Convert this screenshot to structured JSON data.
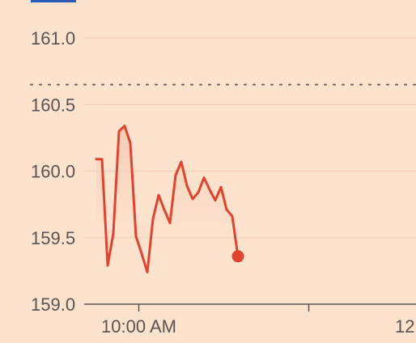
{
  "colors": {
    "background": "#FDE2CE",
    "line": "#E0442E",
    "area": "#F5C8B2",
    "grid": "#F5D2BD",
    "axis": "#5a5450",
    "tab": "#2B5AB8"
  },
  "chart_data": {
    "type": "line",
    "title": "",
    "xlabel": "",
    "ylabel": "",
    "ylim": [
      159.0,
      161.1
    ],
    "yticks": [
      {
        "value": 159.0,
        "label": "159.0"
      },
      {
        "value": 159.5,
        "label": "159.5"
      },
      {
        "value": 160.0,
        "label": "160.0"
      },
      {
        "value": 160.5,
        "label": "160.5"
      },
      {
        "value": 161.0,
        "label": "161.0"
      }
    ],
    "xticks": [
      {
        "time": "10:00",
        "label": "10:00 AM"
      },
      {
        "time": "12:00",
        "label": "12"
      }
    ],
    "reference_line": {
      "value": 160.65,
      "style": "dotted"
    },
    "grid": true,
    "series": [
      {
        "values": [
          {
            "time": "09:30",
            "value": 160.09
          },
          {
            "time": "09:34",
            "value": 160.09
          },
          {
            "time": "09:38",
            "value": 159.29
          },
          {
            "time": "09:42",
            "value": 159.53
          },
          {
            "time": "09:46",
            "value": 160.3
          },
          {
            "time": "09:50",
            "value": 160.34
          },
          {
            "time": "09:54",
            "value": 160.21
          },
          {
            "time": "09:58",
            "value": 159.51
          },
          {
            "time": "10:02",
            "value": 159.38
          },
          {
            "time": "10:06",
            "value": 159.24
          },
          {
            "time": "10:10",
            "value": 159.64
          },
          {
            "time": "10:14",
            "value": 159.82
          },
          {
            "time": "10:18",
            "value": 159.71
          },
          {
            "time": "10:22",
            "value": 159.61
          },
          {
            "time": "10:26",
            "value": 159.97
          },
          {
            "time": "10:30",
            "value": 160.07
          },
          {
            "time": "10:34",
            "value": 159.89
          },
          {
            "time": "10:38",
            "value": 159.79
          },
          {
            "time": "10:42",
            "value": 159.84
          },
          {
            "time": "10:46",
            "value": 159.95
          },
          {
            "time": "10:50",
            "value": 159.86
          },
          {
            "time": "10:54",
            "value": 159.78
          },
          {
            "time": "10:58",
            "value": 159.88
          },
          {
            "time": "11:02",
            "value": 159.71
          },
          {
            "time": "11:06",
            "value": 159.66
          },
          {
            "time": "11:10",
            "value": 159.36
          }
        ]
      }
    ]
  }
}
